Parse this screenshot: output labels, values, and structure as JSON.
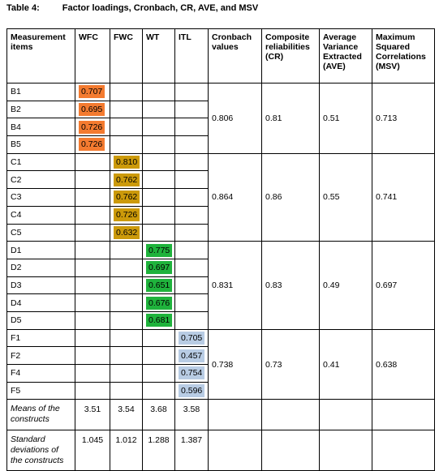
{
  "title": {
    "label": "Table 4:",
    "text": "Factor loadings, Cronbach, CR, AVE, and MSV"
  },
  "table": {
    "headers": [
      "Measurement items",
      "WFC",
      "FWC",
      "WT",
      "ITL",
      "Cronbach values",
      "Composite reliabilities (CR)",
      "Average Variance Extracted (AVE)",
      "Maximum Squared Correlations (MSV)"
    ],
    "groups": [
      {
        "items": [
          {
            "name": "B1",
            "loading": "0.707"
          },
          {
            "name": "B2",
            "loading": "0.695"
          },
          {
            "name": "B4",
            "loading": "0.726"
          },
          {
            "name": "B5",
            "loading": "0.726"
          }
        ],
        "cronbach": "0.806",
        "cr": "0.81",
        "ave": "0.51",
        "msv": "0.713"
      },
      {
        "items": [
          {
            "name": "C1",
            "loading": "0.810"
          },
          {
            "name": "C2",
            "loading": "0.762"
          },
          {
            "name": "C3",
            "loading": "0.762"
          },
          {
            "name": "C4",
            "loading": "0.726"
          },
          {
            "name": "C5",
            "loading": "0.632"
          }
        ],
        "cronbach": "0.864",
        "cr": "0.86",
        "ave": "0.55",
        "msv": "0.741"
      },
      {
        "items": [
          {
            "name": "D1",
            "loading": "0.775"
          },
          {
            "name": "D2",
            "loading": "0.697"
          },
          {
            "name": "D3",
            "loading": "0.651"
          },
          {
            "name": "D4",
            "loading": "0.676"
          },
          {
            "name": "D5",
            "loading": "0.681"
          }
        ],
        "cronbach": "0.831",
        "cr": "0.83",
        "ave": "0.49",
        "msv": "0.697"
      },
      {
        "items": [
          {
            "name": "F1",
            "loading": "0.705"
          },
          {
            "name": "F2",
            "loading": "0.457"
          },
          {
            "name": "F4",
            "loading": "0.754"
          },
          {
            "name": "F5",
            "loading": "0.596"
          }
        ],
        "cronbach": "0.738",
        "cr": "0.73",
        "ave": "0.41",
        "msv": "0.638"
      }
    ],
    "summary": [
      {
        "label": "Means of the constructs",
        "values": [
          "3.51",
          "3.54",
          "3.68",
          "3.58"
        ]
      },
      {
        "label": "Standard deviations of the constructs",
        "values": [
          "1.045",
          "1.012",
          "1.288",
          "1.387"
        ]
      }
    ]
  }
}
